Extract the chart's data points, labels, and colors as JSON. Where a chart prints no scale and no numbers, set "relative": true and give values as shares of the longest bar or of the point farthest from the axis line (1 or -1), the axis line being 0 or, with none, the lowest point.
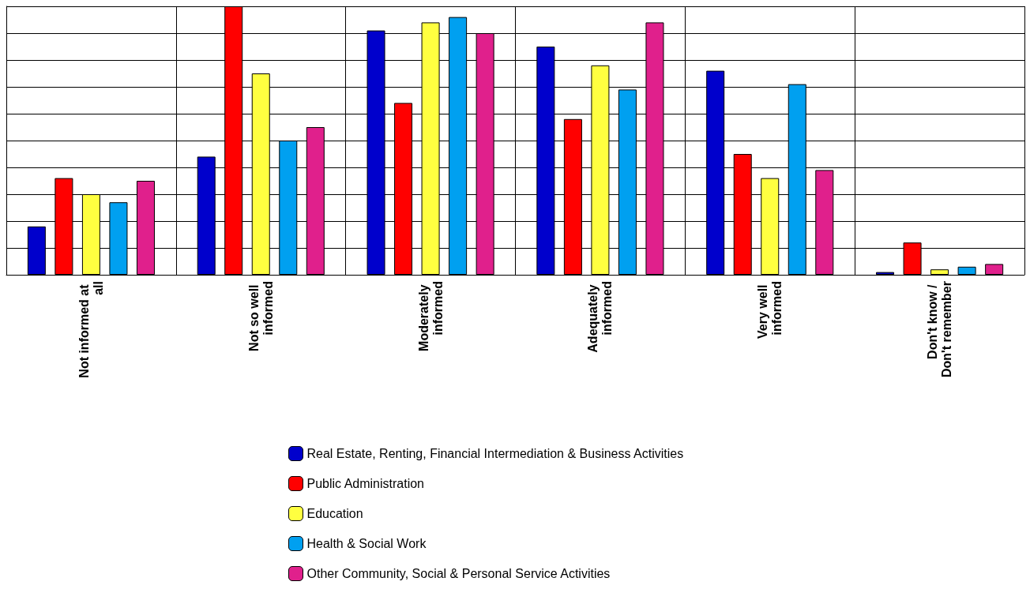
{
  "chart_data": {
    "type": "bar",
    "relative": true,
    "grid": true,
    "legend": "bottom",
    "categories": [
      "Not informed at all",
      "Not so well informed",
      "Moderately informed",
      "Adequately informed",
      "Very well informed",
      "Don't know / Don't remember"
    ],
    "series": [
      {
        "name": "Real Estate, Renting, Financial Intermediation & Business Activities",
        "color": "#0000cc",
        "values": [
          0.18,
          0.44,
          0.91,
          0.85,
          0.76,
          0.01
        ]
      },
      {
        "name": "Public Administration",
        "color": "#ff0000",
        "values": [
          0.36,
          1,
          0.64,
          0.58,
          0.45,
          0.12
        ]
      },
      {
        "name": "Education",
        "color": "#ffff40",
        "values": [
          0.3,
          0.75,
          0.94,
          0.78,
          0.36,
          0.02
        ]
      },
      {
        "name": "Health & Social Work",
        "color": "#00a0f0",
        "values": [
          0.27,
          0.5,
          0.96,
          0.69,
          0.71,
          0.03
        ]
      },
      {
        "name": "Other Community, Social & Personal Service Activities",
        "color": "#e0208c",
        "values": [
          0.35,
          0.55,
          0.9,
          0.94,
          0.39,
          0.04
        ]
      }
    ]
  }
}
